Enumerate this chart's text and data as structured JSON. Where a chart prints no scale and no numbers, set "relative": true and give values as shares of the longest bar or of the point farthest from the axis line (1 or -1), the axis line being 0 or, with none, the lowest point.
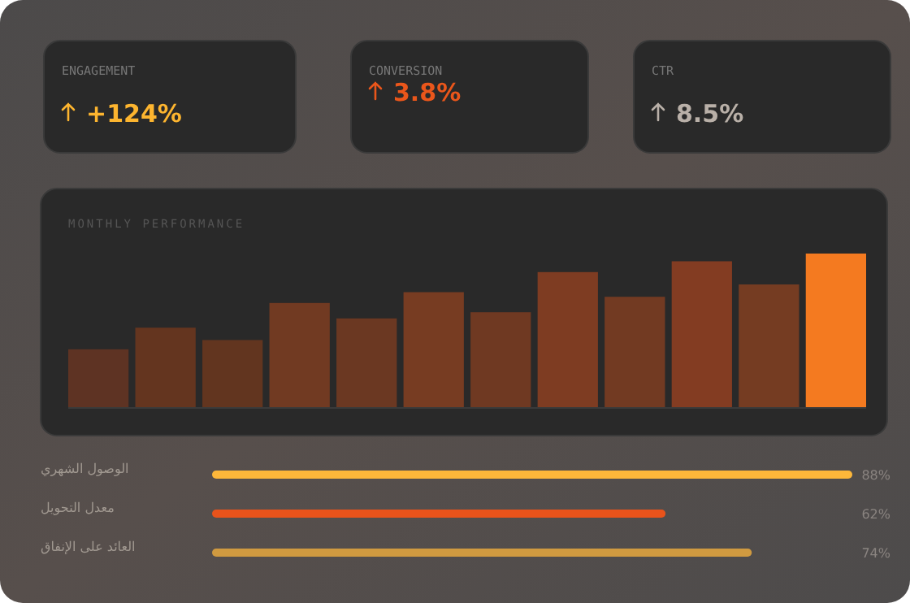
{
  "chart_data": [
    {
      "type": "other",
      "title": "ENGAGEMENT",
      "annotations": [
        "+124%"
      ],
      "color": "#fdb52f"
    },
    {
      "type": "other",
      "title": "CONVERSION",
      "annotations": [
        "3.8%"
      ],
      "color": "#ea561b"
    },
    {
      "type": "other",
      "title": "CTR",
      "annotations": [
        "8.5%"
      ],
      "color": "#b9b0a8"
    },
    {
      "type": "bar",
      "title": "MONTHLY PERFORMANCE",
      "relative": true,
      "categories": [
        null,
        null,
        null,
        null,
        null,
        null,
        null,
        null,
        null,
        null,
        null,
        null
      ],
      "values": [
        0.38,
        0.52,
        0.44,
        0.68,
        0.58,
        0.75,
        0.62,
        0.88,
        0.72,
        0.95,
        0.8,
        1
      ],
      "colors": [
        "#5e3323",
        "#64351f",
        "#62351f",
        "#713a22",
        "#6b3822",
        "#773c22",
        "#6f3922",
        "#7e3c22",
        "#723a22",
        "#833c22",
        "#753c22",
        "#f47a20"
      ]
    },
    {
      "type": "bar",
      "orientation": "horizontal",
      "categories": [
        "الوصول الشهري",
        "معدل التحويل",
        "العائد على الإنفاق"
      ],
      "values": [
        88,
        62,
        74
      ],
      "value_labels": [
        "88%",
        "62%",
        "74%"
      ],
      "colors": [
        "#fdb73a",
        "#e9531b",
        "#d09a40"
      ]
    }
  ]
}
